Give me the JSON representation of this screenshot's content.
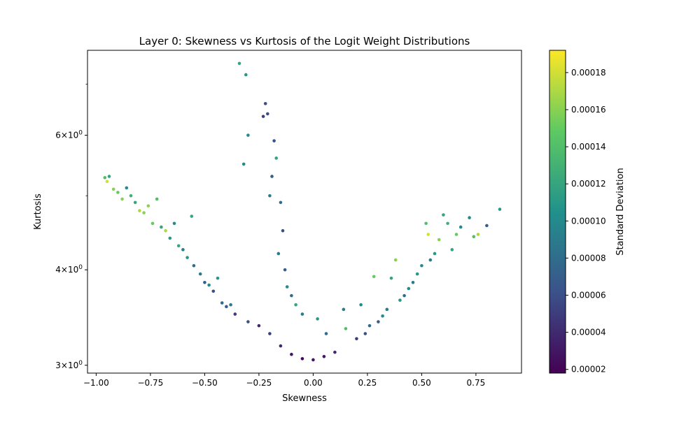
{
  "chart_data": {
    "type": "scatter",
    "title": "Layer 0: Skewness vs Kurtosis of the Logit Weight Distributions",
    "xlabel": "Skewness",
    "ylabel": "Kurtosis",
    "yscale": "log",
    "xlim": [
      -1.04,
      0.96
    ],
    "ylim": [
      2.93,
      7.75
    ],
    "x_ticks": [
      {
        "value": -1.0,
        "label": "−1.00"
      },
      {
        "value": -0.75,
        "label": "−0.75"
      },
      {
        "value": -0.5,
        "label": "−0.50"
      },
      {
        "value": -0.25,
        "label": "−0.25"
      },
      {
        "value": 0.0,
        "label": "0.00"
      },
      {
        "value": 0.25,
        "label": "0.25"
      },
      {
        "value": 0.5,
        "label": "0.50"
      },
      {
        "value": 0.75,
        "label": "0.75"
      }
    ],
    "y_ticks": [
      {
        "value": 3,
        "base": "3",
        "exp": "0"
      },
      {
        "value": 4,
        "base": "4",
        "exp": "0"
      },
      {
        "value": 6,
        "base": "6",
        "exp": "0"
      }
    ],
    "y_minor_ticks": [
      5,
      7
    ],
    "colorbar": {
      "label": "Standard Deviation",
      "min": 1.8e-05,
      "max": 0.000192,
      "ticks": [
        {
          "value": 2e-05,
          "label": "0.00002"
        },
        {
          "value": 4e-05,
          "label": "0.00004"
        },
        {
          "value": 6e-05,
          "label": "0.00006"
        },
        {
          "value": 8e-05,
          "label": "0.00008"
        },
        {
          "value": 0.0001,
          "label": "0.00010"
        },
        {
          "value": 0.00012,
          "label": "0.00012"
        },
        {
          "value": 0.00014,
          "label": "0.00014"
        },
        {
          "value": 0.00016,
          "label": "0.00016"
        },
        {
          "value": 0.00018,
          "label": "0.00018"
        }
      ],
      "colormap": "viridis"
    },
    "grid": false,
    "points": [
      {
        "x": -0.34,
        "y": 7.45,
        "c": 0.00012
      },
      {
        "x": -0.31,
        "y": 7.2,
        "c": 0.00011
      },
      {
        "x": -0.22,
        "y": 6.6,
        "c": 6e-05
      },
      {
        "x": -0.23,
        "y": 6.35,
        "c": 5e-05
      },
      {
        "x": -0.21,
        "y": 6.4,
        "c": 6e-05
      },
      {
        "x": -0.3,
        "y": 6.0,
        "c": 0.0001
      },
      {
        "x": -0.32,
        "y": 5.5,
        "c": 0.0001
      },
      {
        "x": -0.96,
        "y": 5.28,
        "c": 0.00014
      },
      {
        "x": -0.95,
        "y": 5.22,
        "c": 0.00018
      },
      {
        "x": -0.94,
        "y": 5.3,
        "c": 0.00012
      },
      {
        "x": -0.92,
        "y": 5.1,
        "c": 0.00016
      },
      {
        "x": -0.9,
        "y": 5.05,
        "c": 0.00015
      },
      {
        "x": -0.88,
        "y": 4.95,
        "c": 0.00016
      },
      {
        "x": -0.86,
        "y": 5.12,
        "c": 0.0001
      },
      {
        "x": -0.84,
        "y": 5.0,
        "c": 0.00013
      },
      {
        "x": -0.82,
        "y": 4.9,
        "c": 0.00012
      },
      {
        "x": -0.8,
        "y": 4.78,
        "c": 0.00017
      },
      {
        "x": -0.78,
        "y": 4.75,
        "c": 0.00016
      },
      {
        "x": -0.76,
        "y": 4.85,
        "c": 0.00016
      },
      {
        "x": -0.74,
        "y": 4.6,
        "c": 0.00015
      },
      {
        "x": -0.72,
        "y": 4.95,
        "c": 0.00014
      },
      {
        "x": -0.7,
        "y": 4.55,
        "c": 0.00012
      },
      {
        "x": -0.68,
        "y": 4.5,
        "c": 0.00017
      },
      {
        "x": -0.66,
        "y": 4.4,
        "c": 0.00011
      },
      {
        "x": -0.64,
        "y": 4.6,
        "c": 0.0001
      },
      {
        "x": -0.62,
        "y": 4.3,
        "c": 0.00012
      },
      {
        "x": -0.6,
        "y": 4.25,
        "c": 9e-05
      },
      {
        "x": -0.58,
        "y": 4.15,
        "c": 0.00011
      },
      {
        "x": -0.56,
        "y": 4.7,
        "c": 0.00012
      },
      {
        "x": -0.55,
        "y": 4.05,
        "c": 8e-05
      },
      {
        "x": -0.52,
        "y": 3.95,
        "c": 9e-05
      },
      {
        "x": -0.5,
        "y": 3.85,
        "c": 7e-05
      },
      {
        "x": -0.48,
        "y": 3.82,
        "c": 0.0001
      },
      {
        "x": -0.46,
        "y": 3.75,
        "c": 6e-05
      },
      {
        "x": -0.44,
        "y": 3.9,
        "c": 0.00011
      },
      {
        "x": -0.42,
        "y": 3.62,
        "c": 8e-05
      },
      {
        "x": -0.4,
        "y": 3.58,
        "c": 7e-05
      },
      {
        "x": -0.38,
        "y": 3.6,
        "c": 9e-05
      },
      {
        "x": -0.36,
        "y": 3.5,
        "c": 5e-05
      },
      {
        "x": 0.86,
        "y": 4.8,
        "c": 0.00011
      },
      {
        "x": 0.8,
        "y": 4.57,
        "c": 7e-05
      },
      {
        "x": 0.76,
        "y": 4.45,
        "c": 0.00017
      },
      {
        "x": 0.74,
        "y": 4.42,
        "c": 0.00014
      },
      {
        "x": 0.72,
        "y": 4.68,
        "c": 0.0001
      },
      {
        "x": 0.68,
        "y": 4.55,
        "c": 0.0001
      },
      {
        "x": 0.66,
        "y": 4.45,
        "c": 0.00015
      },
      {
        "x": 0.64,
        "y": 4.25,
        "c": 0.00012
      },
      {
        "x": 0.62,
        "y": 4.6,
        "c": 0.00013
      },
      {
        "x": 0.6,
        "y": 4.72,
        "c": 0.00012
      },
      {
        "x": 0.58,
        "y": 4.38,
        "c": 0.00016
      },
      {
        "x": 0.56,
        "y": 4.2,
        "c": 0.00011
      },
      {
        "x": 0.54,
        "y": 4.12,
        "c": 9e-05
      },
      {
        "x": 0.53,
        "y": 4.45,
        "c": 0.00018
      },
      {
        "x": 0.52,
        "y": 4.6,
        "c": 0.00014
      },
      {
        "x": 0.5,
        "y": 4.05,
        "c": 0.0001
      },
      {
        "x": 0.48,
        "y": 3.95,
        "c": 0.00011
      },
      {
        "x": 0.46,
        "y": 3.85,
        "c": 9e-05
      },
      {
        "x": 0.44,
        "y": 3.78,
        "c": 0.0001
      },
      {
        "x": 0.42,
        "y": 3.7,
        "c": 8e-05
      },
      {
        "x": 0.4,
        "y": 3.65,
        "c": 0.00011
      },
      {
        "x": 0.38,
        "y": 4.12,
        "c": 0.00016
      },
      {
        "x": 0.36,
        "y": 3.9,
        "c": 0.00012
      },
      {
        "x": 0.34,
        "y": 3.55,
        "c": 9e-05
      },
      {
        "x": 0.32,
        "y": 3.48,
        "c": 0.0001
      },
      {
        "x": 0.3,
        "y": 3.42,
        "c": 7e-05
      },
      {
        "x": 0.28,
        "y": 3.92,
        "c": 0.00015
      },
      {
        "x": 0.26,
        "y": 3.38,
        "c": 8e-05
      },
      {
        "x": 0.24,
        "y": 3.3,
        "c": 6e-05
      },
      {
        "x": 0.22,
        "y": 3.6,
        "c": 0.0001
      },
      {
        "x": 0.2,
        "y": 3.25,
        "c": 5e-05
      },
      {
        "x": 0.15,
        "y": 3.35,
        "c": 0.00014
      },
      {
        "x": 0.14,
        "y": 3.55,
        "c": 9e-05
      },
      {
        "x": 0.1,
        "y": 3.12,
        "c": 4e-05
      },
      {
        "x": 0.05,
        "y": 3.08,
        "c": 3e-05
      },
      {
        "x": 0.0,
        "y": 3.05,
        "c": 3e-05
      },
      {
        "x": -0.05,
        "y": 3.06,
        "c": 2e-05
      },
      {
        "x": -0.1,
        "y": 3.1,
        "c": 3e-05
      },
      {
        "x": -0.15,
        "y": 3.18,
        "c": 4e-05
      },
      {
        "x": -0.2,
        "y": 3.3,
        "c": 5e-05
      },
      {
        "x": -0.25,
        "y": 3.38,
        "c": 4e-05
      },
      {
        "x": -0.3,
        "y": 3.42,
        "c": 6e-05
      },
      {
        "x": -0.18,
        "y": 5.9,
        "c": 6e-05
      },
      {
        "x": -0.17,
        "y": 5.6,
        "c": 0.00012
      },
      {
        "x": -0.19,
        "y": 5.3,
        "c": 7e-05
      },
      {
        "x": -0.2,
        "y": 5.0,
        "c": 9e-05
      },
      {
        "x": -0.15,
        "y": 4.9,
        "c": 8e-05
      },
      {
        "x": -0.14,
        "y": 4.5,
        "c": 6e-05
      },
      {
        "x": -0.16,
        "y": 4.2,
        "c": 9e-05
      },
      {
        "x": -0.13,
        "y": 4.0,
        "c": 7e-05
      },
      {
        "x": -0.12,
        "y": 3.8,
        "c": 0.0001
      },
      {
        "x": -0.1,
        "y": 3.7,
        "c": 8e-05
      },
      {
        "x": -0.08,
        "y": 3.6,
        "c": 0.00012
      },
      {
        "x": -0.05,
        "y": 3.5,
        "c": 9e-05
      },
      {
        "x": 0.02,
        "y": 3.45,
        "c": 0.00011
      },
      {
        "x": 0.06,
        "y": 3.3,
        "c": 8e-05
      }
    ]
  }
}
